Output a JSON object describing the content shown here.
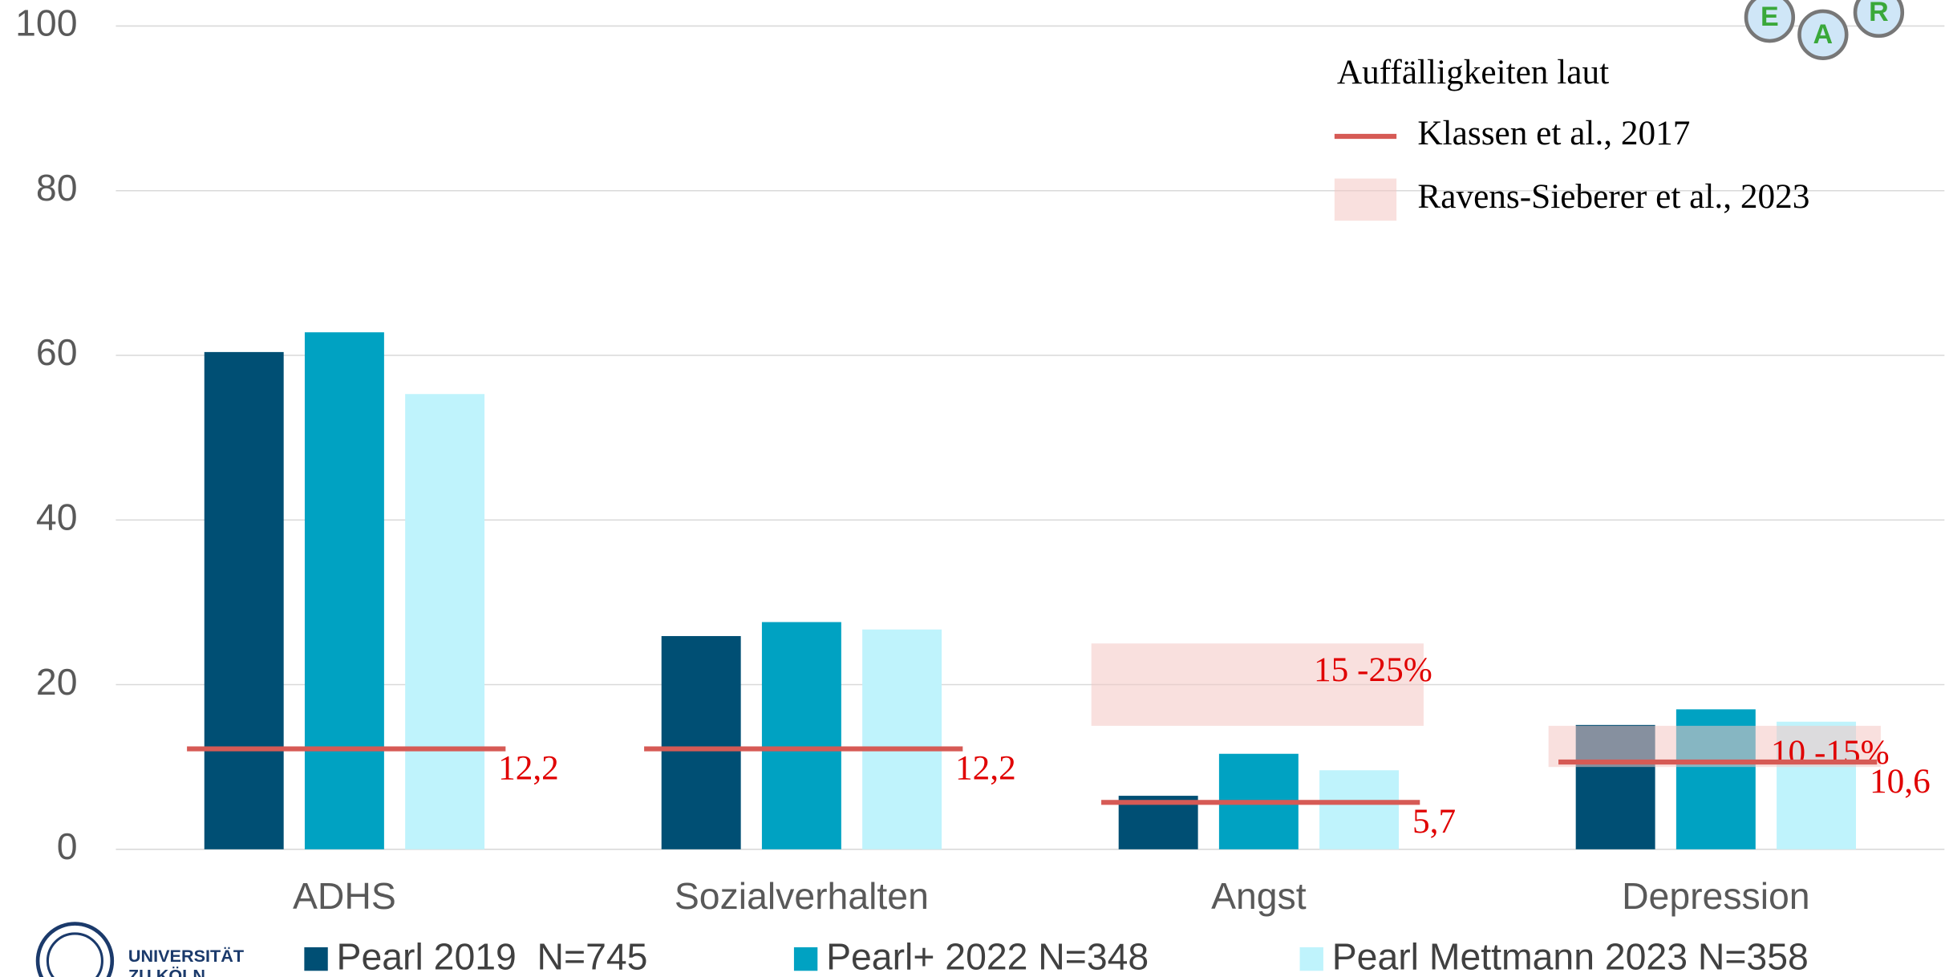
{
  "chart_data": {
    "type": "bar",
    "categories": [
      "ADHS",
      "Sozialverhalten",
      "Angst",
      "Depression"
    ],
    "series": [
      {
        "name": "Pearl 2019  N=745",
        "color": "#004f74",
        "values": [
          60.4,
          25.9,
          6.5,
          15.1
        ]
      },
      {
        "name": "Pearl+ 2022 N=348",
        "color": "#00a2c2",
        "values": [
          62.8,
          27.6,
          11.6,
          17.0
        ]
      },
      {
        "name": "Pearl Mettmann 2023 N=358",
        "color": "#bff3fc",
        "values": [
          55.3,
          26.7,
          9.6,
          15.5
        ]
      }
    ],
    "ylim": [
      0,
      100
    ],
    "yticks": [
      0,
      20,
      40,
      60,
      80,
      100
    ],
    "grid": true,
    "reference_title": "Auffälligkeiten laut",
    "reference_line": {
      "name": "Klassen et al., 2017",
      "color": "#d65a55",
      "values": [
        12.2,
        12.2,
        5.7,
        10.6
      ],
      "value_labels": [
        "12,2",
        "12,2",
        "5,7",
        "10,6"
      ]
    },
    "reference_bands": {
      "name": "Ravens-Sieberer et al., 2023",
      "color": "#f4c7c3",
      "ranges": [
        {
          "category": "Angst",
          "low": 15,
          "high": 25,
          "label": "15 -25%"
        },
        {
          "category": "Depression",
          "low": 10,
          "high": 15,
          "label": "10 -15%"
        }
      ]
    },
    "logo_text": [
      "UNIVERSITÄT",
      "ZU KÖLN"
    ],
    "badge_letters": [
      "E",
      "A",
      "R"
    ]
  }
}
